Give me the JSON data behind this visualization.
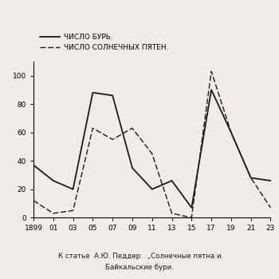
{
  "years": [
    1899,
    1901,
    1903,
    1905,
    1907,
    1909,
    1911,
    1913,
    1915,
    1917,
    1919,
    1921,
    1923
  ],
  "storms": [
    37,
    26,
    20,
    88,
    86,
    35,
    20,
    26,
    7,
    90,
    60,
    28,
    26
  ],
  "sunspots": [
    12,
    3,
    5,
    63,
    55,
    63,
    45,
    3,
    0,
    103,
    60,
    28,
    7
  ],
  "xtick_labels": [
    "1899",
    "01",
    "03",
    "05",
    "07",
    "09",
    "11",
    "13",
    "15",
    "17",
    "19",
    "21",
    "23"
  ],
  "ytick_labels": [
    "0",
    "20",
    "40",
    "60",
    "80",
    "100"
  ],
  "ytick_values": [
    0,
    20,
    40,
    60,
    80,
    100
  ],
  "ylim": [
    0,
    110
  ],
  "legend_storms": "ЧИСЛО БУРЬ.",
  "legend_sunspots": "ЧИСЛО СОЛНЕЧНЫХ ПЯТЕН.",
  "caption_line1": "К статье  А.Ю. Педдер:  „Солнечные пятна и",
  "caption_line2": "Байкальские бури.",
  "bg_color": "#f0ede8",
  "line_color": "#1a1a1a"
}
